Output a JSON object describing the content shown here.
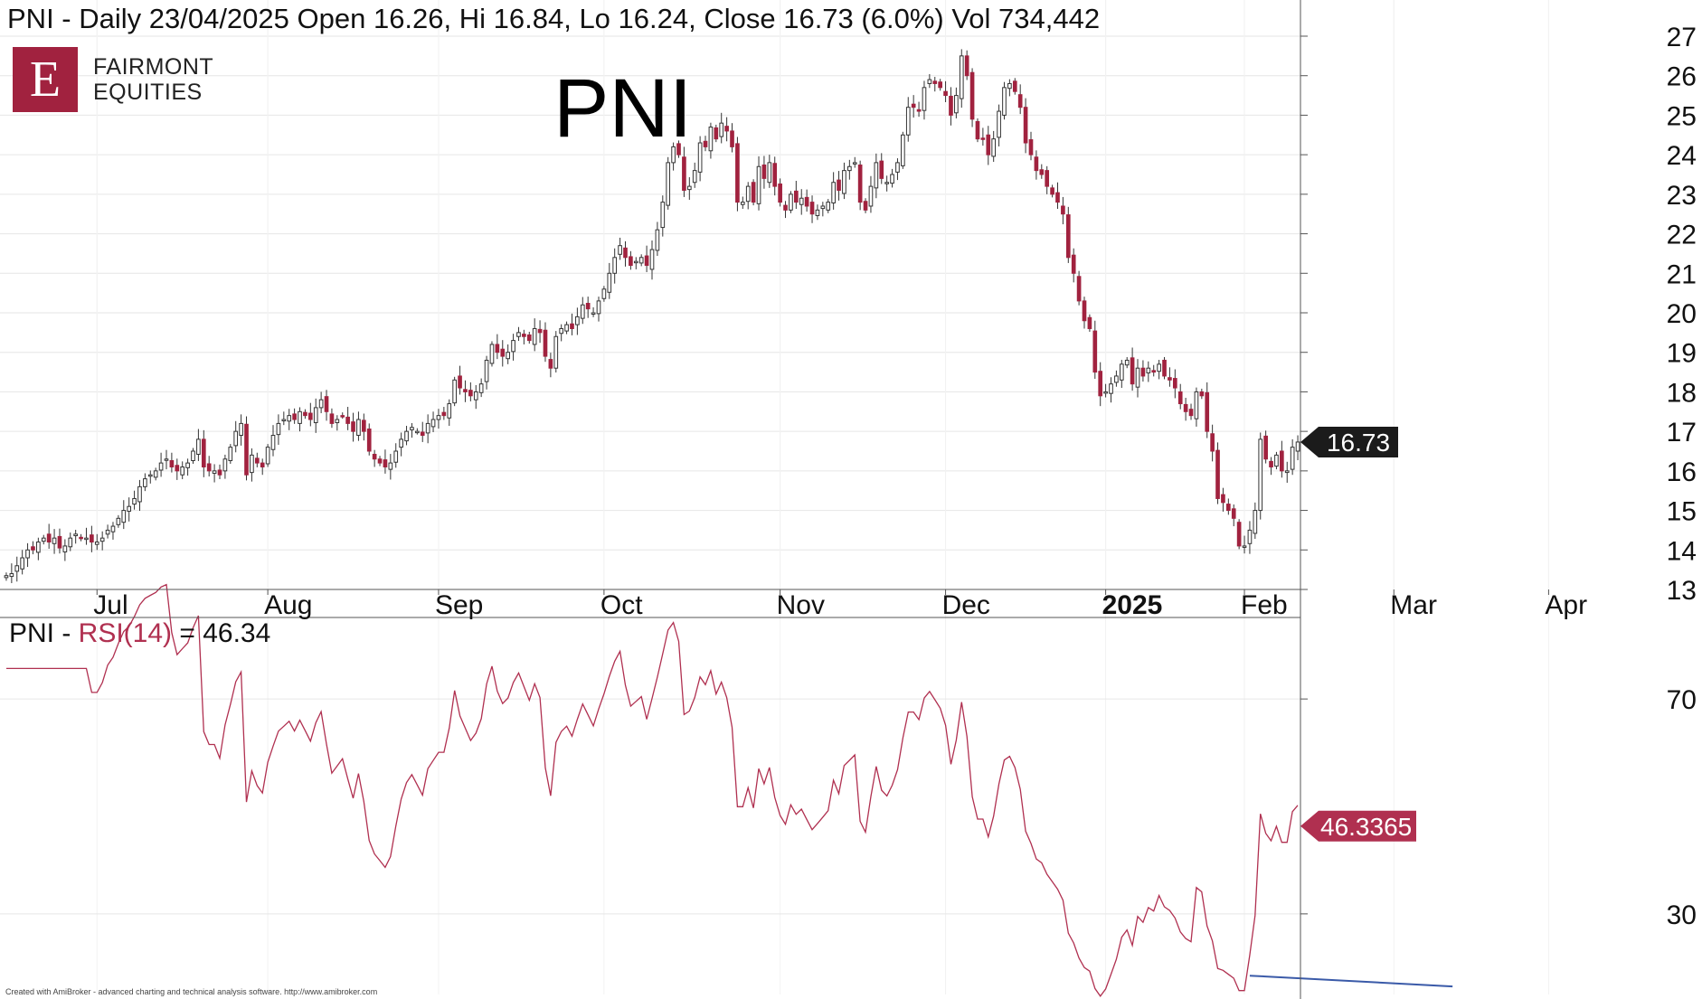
{
  "header": {
    "ticker": "PNI",
    "quote_line": "PNI - Daily 23/04/2025 Open 16.26, Hi 16.84, Lo 16.24, Close 16.73 (6.0%) Vol 734,442"
  },
  "logo": {
    "letter": "E",
    "line1": "FAIRMONT",
    "line2": "EQUITIES",
    "color": "#a1223f"
  },
  "big_ticker": "PNI",
  "footer": "Created with AmiBroker - advanced charting and technical analysis software. http://www.amibroker.com",
  "colors": {
    "down": "#a1223f",
    "up": "#ffffff",
    "wick": "#333333",
    "rsi_line": "#b03050",
    "divergence": "#3a5aa8",
    "grid": "#e6e6e6",
    "axis": "#555555"
  },
  "chart_data": [
    {
      "type": "candlestick",
      "title": "PNI - Daily 23/04/2025 Open 16.26, Hi 16.84, Lo 16.24, Close 16.73 (6.0%) Vol 734,442",
      "ylim": [
        13,
        27
      ],
      "y_ticks": [
        "27",
        "26",
        "25",
        "24",
        "23",
        "22",
        "21",
        "20",
        "19",
        "18",
        "17",
        "16",
        "15",
        "14",
        "13"
      ],
      "x_labels": [
        "Jul",
        "Aug",
        "Sep",
        "Oct",
        "Nov",
        "Dec",
        "2025",
        "Feb",
        "Mar",
        "Apr"
      ],
      "last_price_label": "16.73",
      "series_closes": [
        13.35,
        13.4,
        13.6,
        13.8,
        14.0,
        14.0,
        14.2,
        14.3,
        14.2,
        14.3,
        14.05,
        14.1,
        14.3,
        14.4,
        14.3,
        14.3,
        14.2,
        14.2,
        14.3,
        14.5,
        14.6,
        14.8,
        15.0,
        15.1,
        15.3,
        15.6,
        15.8,
        15.9,
        16.0,
        16.2,
        16.3,
        16.1,
        16.0,
        16.1,
        16.2,
        16.5,
        16.8,
        16.1,
        16.0,
        16.0,
        15.9,
        16.3,
        16.6,
        17.0,
        17.2,
        15.9,
        16.4,
        16.2,
        16.1,
        16.6,
        16.9,
        17.2,
        17.3,
        17.4,
        17.3,
        17.5,
        17.4,
        17.3,
        17.6,
        17.8,
        17.5,
        17.2,
        17.3,
        17.4,
        17.2,
        17.0,
        17.3,
        17.0,
        16.5,
        16.3,
        16.2,
        16.1,
        16.2,
        16.5,
        16.8,
        17.0,
        17.1,
        17.0,
        16.9,
        17.2,
        17.3,
        17.4,
        17.4,
        17.7,
        18.3,
        18.1,
        18.0,
        17.9,
        18.0,
        18.2,
        18.8,
        19.2,
        19.0,
        18.9,
        19.0,
        19.3,
        19.5,
        19.4,
        19.3,
        19.6,
        19.5,
        18.9,
        18.6,
        19.4,
        19.6,
        19.7,
        19.6,
        19.9,
        20.2,
        20.1,
        20.0,
        20.3,
        20.6,
        21.0,
        21.4,
        21.7,
        21.4,
        21.2,
        21.3,
        21.4,
        21.2,
        21.6,
        22.1,
        22.8,
        23.8,
        24.2,
        24.0,
        23.1,
        23.2,
        23.6,
        24.3,
        24.2,
        24.7,
        24.4,
        24.8,
        24.6,
        24.2,
        22.8,
        22.8,
        23.2,
        22.8,
        23.7,
        23.4,
        23.8,
        23.2,
        22.8,
        22.6,
        23.0,
        22.8,
        22.9,
        22.7,
        22.5,
        22.6,
        22.7,
        22.8,
        23.3,
        23.1,
        23.6,
        23.7,
        23.8,
        22.8,
        22.6,
        23.2,
        23.8,
        23.4,
        23.3,
        23.5,
        23.8,
        24.5,
        25.2,
        25.2,
        25.1,
        25.7,
        25.9,
        25.8,
        25.7,
        25.5,
        25.0,
        25.5,
        26.5,
        26.0,
        24.9,
        24.4,
        24.4,
        24.0,
        24.4,
        25.1,
        25.7,
        25.8,
        25.6,
        25.2,
        24.3,
        24.0,
        23.6,
        23.5,
        23.2,
        23.0,
        22.8,
        22.5,
        21.4,
        21.0,
        20.3,
        19.8,
        19.6,
        18.5,
        17.9,
        18.0,
        18.2,
        18.4,
        18.7,
        18.8,
        18.2,
        18.6,
        18.4,
        18.6,
        18.5,
        18.7,
        18.4,
        18.3,
        18.1,
        17.7,
        17.5,
        17.4,
        18.0,
        17.9,
        17.0,
        16.5,
        15.3,
        15.2,
        15.0,
        14.8,
        14.1,
        14.1,
        14.5,
        15.0,
        16.8,
        16.3,
        16.1,
        16.4,
        16.0,
        16.0,
        16.6,
        16.73
      ],
      "rsi": {
        "label_prefix": "PNI - ",
        "label_indicator": "RSI(14)",
        "label_value": " = 46.34",
        "ylim": [
          15,
          85
        ],
        "y_ticks": [
          "70",
          "30"
        ],
        "last_value_label": "46.3365",
        "divergence_line": [
          [
            18.5,
            21
          ],
          [
            16.5,
            24
          ]
        ]
      }
    }
  ]
}
